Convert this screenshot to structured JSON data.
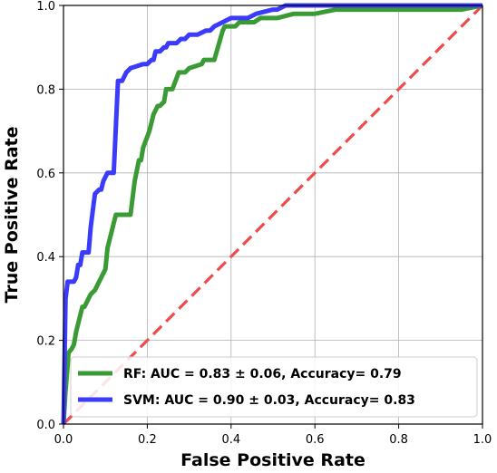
{
  "chart_data": {
    "type": "line",
    "xlabel": "False Positive Rate",
    "ylabel": "True Positive Rate",
    "xlim": [
      0,
      1
    ],
    "ylim": [
      0,
      1
    ],
    "x_ticks": [
      "0.0",
      "0.2",
      "0.4",
      "0.6",
      "0.8",
      "1.0"
    ],
    "y_ticks": [
      "0.0",
      "0.2",
      "0.4",
      "0.6",
      "0.8",
      "1.0"
    ],
    "grid": true,
    "legend_position": "lower-right",
    "series": [
      {
        "name": "RF: AUC = 0.83 ± 0.06, Accuracy= 0.79",
        "color": "#3a9b35",
        "x": [
          0.0,
          0.005,
          0.01,
          0.012,
          0.02,
          0.025,
          0.03,
          0.035,
          0.04,
          0.045,
          0.05,
          0.06,
          0.065,
          0.075,
          0.08,
          0.085,
          0.09,
          0.095,
          0.1,
          0.105,
          0.11,
          0.115,
          0.12,
          0.125,
          0.15,
          0.16,
          0.165,
          0.17,
          0.18,
          0.185,
          0.19,
          0.205,
          0.215,
          0.22,
          0.225,
          0.23,
          0.24,
          0.245,
          0.26,
          0.275,
          0.285,
          0.29,
          0.3,
          0.33,
          0.335,
          0.34,
          0.355,
          0.36,
          0.38,
          0.385,
          0.39,
          0.41,
          0.42,
          0.455,
          0.47,
          0.48,
          0.49,
          0.51,
          0.55,
          0.58,
          0.6,
          0.65,
          0.7,
          0.75,
          0.8,
          0.85,
          0.9,
          0.95,
          1.0
        ],
        "y": [
          0.0,
          0.08,
          0.14,
          0.17,
          0.18,
          0.19,
          0.22,
          0.24,
          0.26,
          0.28,
          0.28,
          0.3,
          0.31,
          0.32,
          0.33,
          0.34,
          0.35,
          0.36,
          0.37,
          0.42,
          0.44,
          0.46,
          0.48,
          0.5,
          0.5,
          0.5,
          0.54,
          0.58,
          0.63,
          0.63,
          0.66,
          0.7,
          0.74,
          0.75,
          0.76,
          0.76,
          0.77,
          0.8,
          0.8,
          0.84,
          0.84,
          0.84,
          0.85,
          0.86,
          0.87,
          0.87,
          0.87,
          0.87,
          0.94,
          0.95,
          0.95,
          0.95,
          0.96,
          0.96,
          0.97,
          0.97,
          0.97,
          0.97,
          0.98,
          0.98,
          0.98,
          0.99,
          0.99,
          0.99,
          0.99,
          0.99,
          0.99,
          0.99,
          1.0
        ]
      },
      {
        "name": "SVM: AUC = 0.90 ± 0.03, Accuracy= 0.83",
        "color": "#3b3bfb",
        "x": [
          0.0,
          0.005,
          0.01,
          0.02,
          0.025,
          0.03,
          0.035,
          0.04,
          0.045,
          0.05,
          0.055,
          0.06,
          0.065,
          0.07,
          0.075,
          0.085,
          0.09,
          0.095,
          0.1,
          0.105,
          0.11,
          0.12,
          0.13,
          0.135,
          0.14,
          0.15,
          0.16,
          0.19,
          0.2,
          0.21,
          0.215,
          0.22,
          0.23,
          0.24,
          0.245,
          0.25,
          0.27,
          0.28,
          0.29,
          0.3,
          0.31,
          0.32,
          0.34,
          0.35,
          0.36,
          0.38,
          0.4,
          0.42,
          0.44,
          0.46,
          0.5,
          0.51,
          0.53,
          0.6,
          0.7,
          0.8,
          0.9,
          1.0
        ],
        "y": [
          0.0,
          0.3,
          0.34,
          0.34,
          0.34,
          0.35,
          0.38,
          0.38,
          0.41,
          0.41,
          0.41,
          0.41,
          0.47,
          0.51,
          0.55,
          0.56,
          0.56,
          0.58,
          0.59,
          0.6,
          0.6,
          0.6,
          0.82,
          0.82,
          0.82,
          0.84,
          0.85,
          0.86,
          0.86,
          0.87,
          0.87,
          0.89,
          0.89,
          0.9,
          0.9,
          0.91,
          0.91,
          0.92,
          0.92,
          0.93,
          0.93,
          0.93,
          0.94,
          0.94,
          0.95,
          0.96,
          0.97,
          0.97,
          0.97,
          0.98,
          0.99,
          0.99,
          1.0,
          1.0,
          1.0,
          1.0,
          1.0,
          1.0
        ]
      }
    ],
    "reference_line": {
      "x": [
        0,
        1
      ],
      "y": [
        0,
        1
      ],
      "color": "#f04a4a",
      "style": "dashed"
    }
  }
}
